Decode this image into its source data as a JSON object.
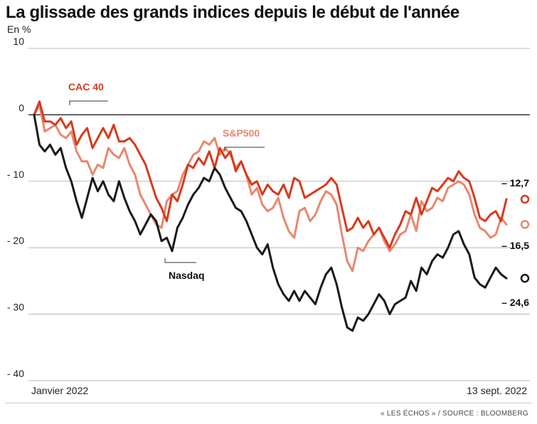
{
  "title": "La glissade des grands indices depuis le début de l'année",
  "unit": "En %",
  "footer": "« LES ÉCHOS » / SOURCE : BLOOMBERG",
  "chart_data": {
    "type": "line",
    "ylim": [
      -40,
      10
    ],
    "yticks": [
      10,
      0,
      -10,
      -20,
      -30,
      -40
    ],
    "ytick_labels": [
      "10",
      "0",
      "- 10",
      "- 20",
      "- 30",
      "- 40"
    ],
    "x_start_label": "Janvier 2022",
    "x_end_label": "13 sept. 2022",
    "grid": true,
    "series": [
      {
        "name": "CAC 40",
        "color": "#d63a1c",
        "end_label": "– 12,7",
        "values": [
          0,
          2,
          -1,
          -1,
          -1.5,
          -0.5,
          -2,
          -1,
          -4.5,
          -3,
          -2,
          -5,
          -3.5,
          -2,
          -3.5,
          -1.5,
          -4,
          -4,
          -3.5,
          -4.5,
          -6,
          -7.5,
          -10,
          -12.5,
          -14,
          -16,
          -12,
          -13,
          -10.5,
          -7.5,
          -8,
          -6.5,
          -7.5,
          -5.5,
          -8,
          -5,
          -6.5,
          -5.5,
          -8.5,
          -7,
          -9,
          -10.5,
          -10,
          -12,
          -10.5,
          -11.5,
          -12,
          -10.5,
          -12.5,
          -9.5,
          -10,
          -12.5,
          -12,
          -11.5,
          -11,
          -10.5,
          -9.5,
          -10.5,
          -14,
          -17.5,
          -17,
          -15.5,
          -17,
          -16,
          -18,
          -17,
          -18.5,
          -20,
          -18,
          -16.5,
          -14.5,
          -15,
          -12.5,
          -15,
          -13,
          -11,
          -11.5,
          -10.5,
          -9.5,
          -10,
          -8.5,
          -9.5,
          -10,
          -12.5,
          -15.5,
          -16,
          -15,
          -14.5,
          -16,
          -12.7
        ]
      },
      {
        "name": "S&P500",
        "color": "#e8876f",
        "end_label": "– 16,5",
        "values": [
          0,
          1.5,
          -2.5,
          -2,
          -1.5,
          -3,
          -3.5,
          -2.5,
          -5.5,
          -7,
          -7,
          -9,
          -7.5,
          -8,
          -5,
          -6,
          -6.5,
          -5,
          -7.5,
          -9,
          -12,
          -13.5,
          -15,
          -16.5,
          -17,
          -13,
          -12,
          -11.5,
          -9,
          -7.5,
          -6,
          -5.5,
          -4,
          -4.5,
          -3.5,
          -6,
          -5,
          -6,
          -8,
          -7,
          -9,
          -12,
          -11,
          -13.5,
          -14.5,
          -14,
          -12.5,
          -15.5,
          -17.5,
          -18.5,
          -14.5,
          -14,
          -16,
          -15,
          -13,
          -11.5,
          -12,
          -13.5,
          -18,
          -22,
          -23.5,
          -20,
          -20.5,
          -19,
          -18,
          -17,
          -19,
          -20.5,
          -19.5,
          -18,
          -17.5,
          -15,
          -17.5,
          -13,
          -14.5,
          -14,
          -12.5,
          -13,
          -11,
          -10.5,
          -10,
          -10.5,
          -12,
          -15,
          -17,
          -17.5,
          -18.5,
          -18,
          -15.5,
          -16.5
        ]
      },
      {
        "name": "Nasdaq",
        "color": "#1a1a1a",
        "end_label": "– 24,6",
        "values": [
          0,
          -4.5,
          -5.5,
          -4.5,
          -6,
          -5,
          -8,
          -10,
          -13,
          -15.5,
          -12.5,
          -9.5,
          -11.5,
          -10,
          -12,
          -13,
          -10,
          -12.5,
          -14.5,
          -16,
          -18,
          -16.5,
          -15,
          -16,
          -19,
          -18.5,
          -20.5,
          -17,
          -15.5,
          -13.5,
          -12,
          -11,
          -9.5,
          -10,
          -8,
          -9,
          -11,
          -12.5,
          -14,
          -14.5,
          -16,
          -18,
          -20,
          -21,
          -19.5,
          -23,
          -25.5,
          -27,
          -28,
          -26.5,
          -28,
          -26.5,
          -27.5,
          -28.5,
          -26,
          -24,
          -23,
          -25.5,
          -29,
          -32,
          -32.5,
          -30.5,
          -31,
          -30,
          -28.5,
          -27,
          -28,
          -30,
          -28.5,
          -28,
          -27.5,
          -25,
          -26.5,
          -23,
          -24,
          -22,
          -21,
          -21.5,
          -20,
          -18,
          -17.5,
          -19.5,
          -21,
          -24.5,
          -25.5,
          -26,
          -24.5,
          -23,
          -24,
          -24.6
        ]
      }
    ],
    "annotations": [
      {
        "text": "CAC 40",
        "series": 0
      },
      {
        "text": "S&P500",
        "series": 1
      },
      {
        "text": "Nasdaq",
        "series": 2
      }
    ]
  }
}
